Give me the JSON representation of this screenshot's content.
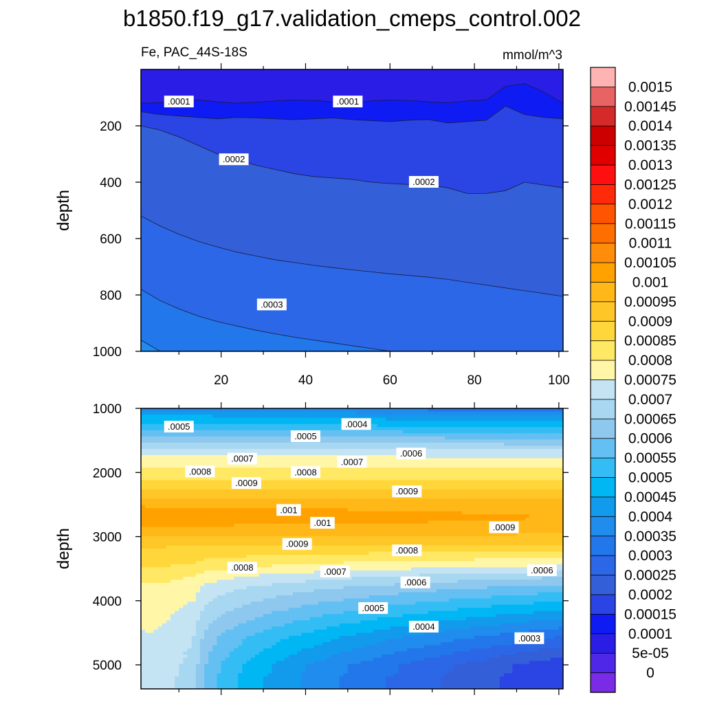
{
  "chart_data": {
    "type": "contour",
    "title": "b1850.f19_g17.validation_cmeps_control.002",
    "variable_label": "Fe, PAC_44S-18S",
    "units": "mmol/m^3",
    "panels": [
      {
        "name": "upper",
        "ylabel": "depth",
        "ylim": [
          1000,
          0
        ],
        "xlim": [
          1,
          101
        ],
        "yticks": [
          "200",
          "400",
          "600",
          "800",
          "1000"
        ],
        "xticks": [
          "20",
          "40",
          "60",
          "80",
          "100"
        ],
        "bands": [
          {
            "level": 0.0001,
            "depth": [
              120,
              118,
              112,
              108,
              115,
              120,
              116,
              112,
              108,
              110,
              115,
              118,
              112,
              108,
              110,
              115,
              118,
              112,
              108,
              60,
              50,
              80,
              120
            ]
          },
          {
            "level": 0.00015,
            "depth": [
              150,
              160,
              165,
              170,
              175,
              170,
              172,
              175,
              178,
              175,
              172,
              178,
              182,
              185,
              180,
              178,
              190,
              185,
              180,
              130,
              160,
              170,
              175
            ]
          },
          {
            "level": 0.0002,
            "depth": [
              200,
              215,
              240,
              270,
              300,
              320,
              340,
              355,
              370,
              380,
              385,
              390,
              400,
              405,
              408,
              410,
              420,
              440,
              440,
              430,
              400,
              410,
              420
            ]
          },
          {
            "level": 0.00025,
            "depth": [
              520,
              555,
              585,
              610,
              630,
              648,
              662,
              675,
              685,
              695,
              703,
              711,
              718,
              725,
              731,
              737,
              745,
              755,
              765,
              775,
              785,
              795,
              805
            ]
          },
          {
            "level": 0.0003,
            "depth": [
              780,
              820,
              850,
              875,
              895,
              910,
              925,
              938,
              950,
              960,
              970,
              980,
              990,
              1000,
              1010,
              1020,
              1030,
              1040,
              1050,
              1060,
              1070,
              1080,
              1090
            ]
          },
          {
            "level": 0.00035,
            "depth": [
              960,
              1000,
              1040,
              1070,
              1100,
              1130,
              1160,
              1180,
              1200,
              1220,
              1240,
              1260,
              1280,
              1300,
              1320,
              1340,
              1360,
              1380,
              1400,
              1420,
              1440,
              1460,
              1480
            ]
          }
        ],
        "labels": [
          {
            "text": ".0001",
            "x": 10,
            "y": 115
          },
          {
            "text": ".0001",
            "x": 50,
            "y": 115
          },
          {
            "text": ".0002",
            "x": 23,
            "y": 320
          },
          {
            "text": ".0002",
            "x": 68,
            "y": 400
          },
          {
            "text": ".0003",
            "x": 32,
            "y": 835
          }
        ]
      },
      {
        "name": "lower",
        "ylabel": "depth",
        "ylim": [
          5375,
          1000
        ],
        "xlim": [
          1,
          101
        ],
        "yticks": [
          "1000",
          "2000",
          "3000",
          "4000",
          "5000"
        ],
        "profile": {
          "depth": [
            1000,
            1100,
            1200,
            1300,
            1400,
            1500,
            1600,
            1700,
            1800,
            1900,
            2000,
            2100,
            2200,
            2300,
            2400,
            2500,
            2600,
            2700,
            2800,
            2900,
            3000,
            3100,
            3200,
            3300,
            3400,
            3500,
            3600,
            3700,
            3800,
            3900,
            4000,
            4100,
            4200,
            4300,
            4400,
            4500,
            4600,
            4700,
            4800,
            4900,
            5000,
            5100,
            5200,
            5375
          ],
          "value": [
            0.00037,
            0.00045,
            0.00049,
            0.00054,
            0.00059,
            0.00064,
            0.00069,
            0.00074,
            0.00077,
            0.0008,
            0.00082,
            0.00085,
            0.00088,
            0.00091,
            0.00094,
            0.00097,
            0.00099,
            0.001,
            0.00099,
            0.00097,
            0.00094,
            0.00091,
            0.00089,
            0.00087,
            0.00085,
            0.00083,
            0.0008,
            0.00078,
            0.00076,
            0.00075,
            0.00074,
            0.00073,
            0.00072,
            0.00071,
            0.0007,
            0.00069,
            0.00068,
            0.00068,
            0.00067,
            0.00067,
            0.00066,
            0.00066,
            0.00065,
            0.00065
          ]
        },
        "labels": [
          {
            "text": ".0005",
            "x": 10,
            "y": 1290
          },
          {
            "text": ".0004",
            "x": 52,
            "y": 1250
          },
          {
            "text": ".0005",
            "x": 40,
            "y": 1440
          },
          {
            "text": ".0006",
            "x": 65,
            "y": 1710
          },
          {
            "text": ".0007",
            "x": 25,
            "y": 1790
          },
          {
            "text": ".0007",
            "x": 51,
            "y": 1840
          },
          {
            "text": ".0008",
            "x": 15,
            "y": 1990
          },
          {
            "text": ".0008",
            "x": 40,
            "y": 2000
          },
          {
            "text": ".0009",
            "x": 26,
            "y": 2170
          },
          {
            "text": ".0009",
            "x": 64,
            "y": 2300
          },
          {
            "text": ".001",
            "x": 36,
            "y": 2590
          },
          {
            "text": ".001",
            "x": 44,
            "y": 2790
          },
          {
            "text": ".0009",
            "x": 87,
            "y": 2860
          },
          {
            "text": ".0009",
            "x": 38,
            "y": 3120
          },
          {
            "text": ".0008",
            "x": 64,
            "y": 3220
          },
          {
            "text": ".0008",
            "x": 25,
            "y": 3490
          },
          {
            "text": ".0007",
            "x": 47,
            "y": 3550
          },
          {
            "text": ".0006",
            "x": 66,
            "y": 3720
          },
          {
            "text": ".0006",
            "x": 96,
            "y": 3530
          },
          {
            "text": ".0005",
            "x": 56,
            "y": 4120
          },
          {
            "text": ".0004",
            "x": 68,
            "y": 4410
          },
          {
            "text": ".0003",
            "x": 93,
            "y": 4590
          }
        ]
      }
    ],
    "colorbar": {
      "labels": [
        "0.0015",
        "0.00145",
        "0.0014",
        "0.00135",
        "0.0013",
        "0.00125",
        "0.0012",
        "0.00115",
        "0.0011",
        "0.00105",
        "0.001",
        "0.00095",
        "0.0009",
        "0.00085",
        "0.0008",
        "0.00075",
        "0.0007",
        "0.00065",
        "0.0006",
        "0.00055",
        "0.0005",
        "0.00045",
        "0.0004",
        "0.00035",
        "0.0003",
        "0.00025",
        "0.0002",
        "0.00015",
        "0.0001",
        "5e-05",
        "0"
      ],
      "colors": [
        "#ffb3b3",
        "#e86464",
        "#d42a2a",
        "#cc0000",
        "#e00000",
        "#ff0f0f",
        "#ff2a0a",
        "#ff5500",
        "#ff6f00",
        "#ff8c0a",
        "#ffa200",
        "#ffb818",
        "#ffc627",
        "#ffd73a",
        "#ffe864",
        "#fff7a7",
        "#c4e4f4",
        "#a8d7f1",
        "#8ec8ee",
        "#64bff2",
        "#33bdf4",
        "#00b7f4",
        "#129aec",
        "#208ced",
        "#2277ea",
        "#2b67e6",
        "#3360d8",
        "#2b44e4",
        "#0e1cf3",
        "#2a1ee6",
        "#4f27e8",
        "#7a2be5"
      ]
    }
  }
}
